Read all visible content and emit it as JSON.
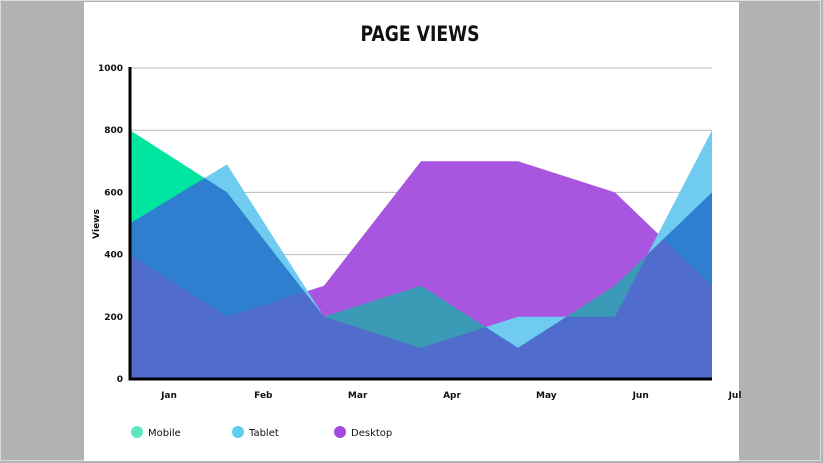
{
  "chart_data": {
    "type": "area",
    "title": "PAGE VIEWS",
    "xlabel": "",
    "ylabel": "Views",
    "categories": [
      "Jan",
      "Feb",
      "Mar",
      "Apr",
      "May",
      "Jun",
      "Jul"
    ],
    "yticks": [
      0,
      200,
      400,
      600,
      800,
      1000
    ],
    "ylim": [
      0,
      1000
    ],
    "grid": true,
    "legend_position": "bottom-left",
    "series": [
      {
        "name": "Desktop",
        "color": "#a855e0",
        "values": [
          400,
          200,
          300,
          700,
          700,
          600,
          300
        ]
      },
      {
        "name": "Tablet",
        "color": "#6fcbf0",
        "values": [
          500,
          690,
          200,
          100,
          200,
          200,
          800
        ]
      },
      {
        "name": "Mobile",
        "color": "#00e5a0",
        "values": [
          800,
          600,
          200,
          300,
          100,
          300,
          600
        ]
      }
    ],
    "overlap_color": "#2f7fd0",
    "legend_colors": {
      "Mobile": "#5de8c1",
      "Tablet": "#5fcdee",
      "Desktop": "#a44bd8"
    }
  }
}
